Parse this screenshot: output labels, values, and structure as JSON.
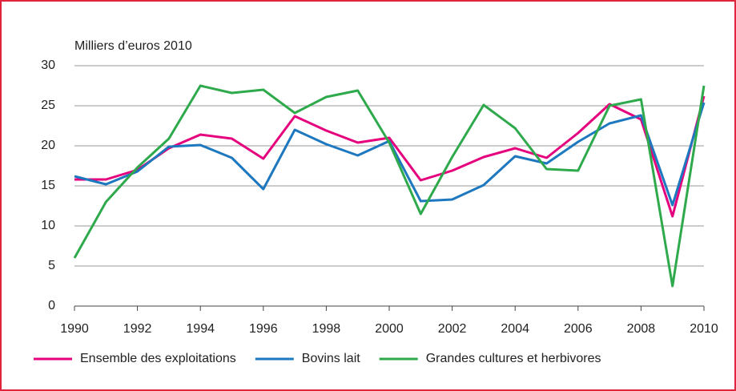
{
  "chart_data": {
    "type": "line",
    "y_label": "Milliers d’euros 2010",
    "x": [
      1990,
      1991,
      1992,
      1993,
      1994,
      1995,
      1996,
      1997,
      1998,
      1999,
      2000,
      2001,
      2002,
      2003,
      2004,
      2005,
      2006,
      2007,
      2008,
      2009,
      2010
    ],
    "series": [
      {
        "name": "Ensemble des exploitations",
        "color": "#e5007d",
        "values": [
          15.8,
          15.8,
          17,
          19.7,
          21.4,
          20.9,
          18.4,
          23.7,
          21.9,
          20.4,
          21,
          15.7,
          16.9,
          18.6,
          19.7,
          18.5,
          21.6,
          25.2,
          23.3,
          11.2,
          26.2
        ]
      },
      {
        "name": "Bovins lait",
        "color": "#1d78bf",
        "values": [
          16.2,
          15.2,
          16.8,
          19.9,
          20.1,
          18.5,
          14.6,
          22,
          20.2,
          18.8,
          20.6,
          13.1,
          13.3,
          15.1,
          18.7,
          17.8,
          20.5,
          22.8,
          23.8,
          12.6,
          25.4
        ]
      },
      {
        "name": "Grandes cultures et herbivores",
        "color": "#2ea94c",
        "values": [
          6,
          13,
          17.3,
          20.9,
          27.5,
          26.6,
          27,
          24.1,
          26.1,
          26.9,
          20.4,
          11.5,
          18.6,
          25.1,
          22.2,
          17.1,
          16.9,
          25,
          25.8,
          2.5,
          27.5
        ]
      }
    ],
    "xlim": [
      1990,
      2010
    ],
    "xticks": [
      1990,
      1992,
      1994,
      1996,
      1998,
      2000,
      2002,
      2004,
      2006,
      2008,
      2010
    ],
    "ylim": [
      0,
      30
    ],
    "yticks": [
      0,
      5,
      10,
      15,
      20,
      25,
      30
    ],
    "grid": true,
    "legend": "bottom"
  }
}
